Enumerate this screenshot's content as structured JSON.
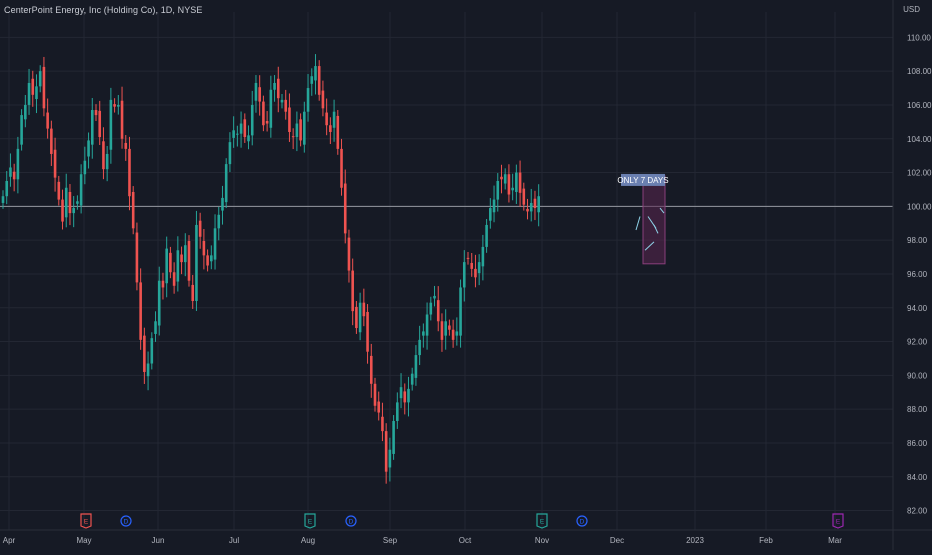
{
  "header": {
    "symbol_title": "CenterPoint Energy, Inc (Holding Co), 1D, NYSE",
    "currency": "USD"
  },
  "colors": {
    "background": "#161a25",
    "grid": "#232733",
    "up": "#26a69a",
    "down": "#ef5350",
    "axis_text": "#b2b5be",
    "line": "#9598a1",
    "box_fill": "#5b2650",
    "box_border": "#8a3f7b",
    "label_bg": "#6a7fb0",
    "dividend": "#2962ff",
    "earnings": "#ef5350",
    "earnings_green": "#26a69a",
    "earnings_purple": "#9c27b0"
  },
  "chart_data": {
    "type": "candlestick",
    "title": "CenterPoint Energy, Inc (Holding Co), 1D, NYSE",
    "y_axis": {
      "unit": "USD",
      "ylim": [
        81.5,
        111.5
      ],
      "tick_labels": [
        "110.00",
        "108.00",
        "106.00",
        "104.00",
        "102.00",
        "100.00",
        "98.00",
        "96.00",
        "94.00",
        "92.00",
        "90.00",
        "88.00",
        "86.00",
        "84.00",
        "82.00"
      ]
    },
    "x_axis": {
      "tick_labels": [
        "Apr",
        "May",
        "Jun",
        "Jul",
        "Aug",
        "Sep",
        "Oct",
        "Nov",
        "Dec",
        "2023",
        "Feb",
        "Mar"
      ]
    },
    "horizontal_line": 100.0,
    "projection_box": {
      "top": 101.8,
      "bottom": 96.6,
      "label": "ONLY 7 DAYS"
    },
    "event_markers": [
      {
        "type": "earnings",
        "label": "E",
        "month": "May"
      },
      {
        "type": "dividend",
        "label": "D",
        "month": "May"
      },
      {
        "type": "earnings",
        "label": "E",
        "month": "Aug"
      },
      {
        "type": "dividend",
        "label": "D",
        "month": "Aug"
      },
      {
        "type": "earnings",
        "label": "E",
        "month": "Nov"
      },
      {
        "type": "dividend",
        "label": "D",
        "month": "Nov"
      },
      {
        "type": "earnings",
        "label": "E",
        "month": "Mar"
      }
    ],
    "closes": [
      100.6,
      101.5,
      102.3,
      101.6,
      103.4,
      105.4,
      106.0,
      107.3,
      106.6,
      107.1,
      108.0,
      105.8,
      104.6,
      103.1,
      101.7,
      100.4,
      99.1,
      101.1,
      99.6,
      99.9,
      100.3,
      101.9,
      102.7,
      103.9,
      105.7,
      105.4,
      104.1,
      102.2,
      103.1,
      106.3,
      105.9,
      106.0,
      104.0,
      103.4,
      100.6,
      98.7,
      95.5,
      92.1,
      90.2,
      90.7,
      92.2,
      93.2,
      95.6,
      95.2,
      97.5,
      96.1,
      95.3,
      97.4,
      96.7,
      97.7,
      95.6,
      94.4,
      98.9,
      98.2,
      97.1,
      96.5,
      97.1,
      98.7,
      99.5,
      100.5,
      102.5,
      103.8,
      104.5,
      104.3,
      104.9,
      104.1,
      104.2,
      106.0,
      107.3,
      106.2,
      104.8,
      104.9,
      106.9,
      107.3,
      106.4,
      106.3,
      105.6,
      104.4,
      104.1,
      104.9,
      103.9,
      105.6,
      107.0,
      107.7,
      108.3,
      106.6,
      105.8,
      104.8,
      104.4,
      105.6,
      103.4,
      101.1,
      98.4,
      96.2,
      93.8,
      92.8,
      94.3,
      93.5,
      91.4,
      89.5,
      88.2,
      87.8,
      86.7,
      84.3,
      85.6,
      87.3,
      88.4,
      89.3,
      88.4,
      89.2,
      90.1,
      91.2,
      92.1,
      92.6,
      93.6,
      94.3,
      94.7,
      93.2,
      92.1,
      93.2,
      92.7,
      92.1,
      92.6,
      95.2,
      96.7,
      96.9,
      96.3,
      95.8,
      96.7,
      97.6,
      98.9,
      99.9,
      100.4,
      101.5,
      101.6,
      101.9,
      100.7,
      101.1,
      102.0,
      100.8,
      100.1,
      99.7,
      100.2,
      99.9,
      100.6
    ]
  }
}
